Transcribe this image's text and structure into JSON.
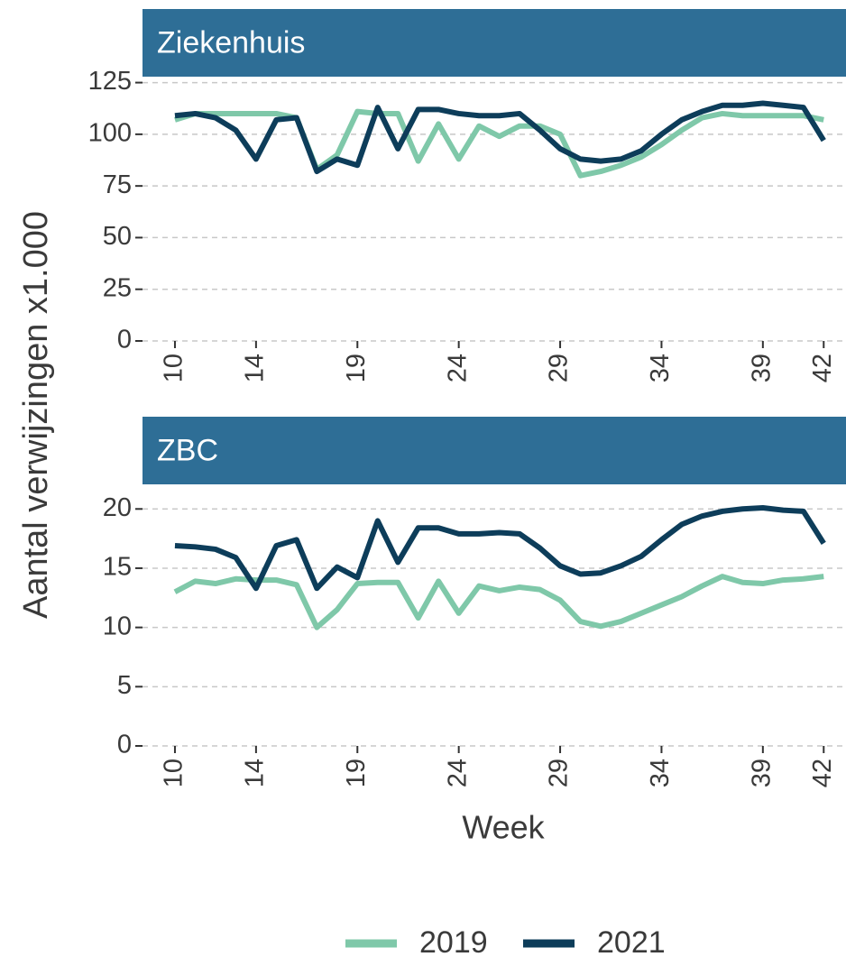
{
  "chart_data": [
    {
      "type": "line",
      "title": "Ziekenhuis",
      "ylabel": "Aantal verwijzingen x1.000",
      "x": [
        10,
        11,
        12,
        13,
        14,
        15,
        16,
        17,
        18,
        19,
        20,
        21,
        22,
        23,
        24,
        25,
        26,
        27,
        28,
        29,
        30,
        31,
        32,
        33,
        34,
        35,
        36,
        37,
        38,
        39,
        40,
        41,
        42
      ],
      "xlim": [
        8.4,
        43.1
      ],
      "xticks": [
        10,
        14,
        19,
        24,
        29,
        34,
        39,
        42
      ],
      "ylim": [
        0,
        127
      ],
      "yticks": [
        0,
        25,
        50,
        75,
        100,
        125
      ],
      "grid": true,
      "series": [
        {
          "name": "2019",
          "color": "#7fc8a9",
          "values": [
            107,
            110,
            110,
            110,
            110,
            110,
            108,
            83,
            90,
            111,
            110,
            110,
            87,
            105,
            88,
            104,
            99,
            104,
            104,
            100,
            80,
            82,
            85,
            89,
            95,
            102,
            108,
            110,
            109,
            109,
            109,
            109,
            107
          ]
        },
        {
          "name": "2021",
          "color": "#0d3d5a",
          "values": [
            109,
            110,
            108,
            102,
            88,
            107,
            108,
            82,
            88,
            85,
            113,
            93,
            112,
            112,
            110,
            109,
            109,
            110,
            102,
            93,
            88,
            87,
            88,
            92,
            100,
            107,
            111,
            114,
            114,
            115,
            114,
            113,
            97
          ]
        }
      ]
    },
    {
      "type": "line",
      "title": "ZBC",
      "xlabel": "Week",
      "x": [
        10,
        11,
        12,
        13,
        14,
        15,
        16,
        17,
        18,
        19,
        20,
        21,
        22,
        23,
        24,
        25,
        26,
        27,
        28,
        29,
        30,
        31,
        32,
        33,
        34,
        35,
        36,
        37,
        38,
        39,
        40,
        41,
        42
      ],
      "xlim": [
        8.4,
        43.1
      ],
      "xticks": [
        10,
        14,
        19,
        24,
        29,
        34,
        39,
        42
      ],
      "ylim": [
        0,
        22
      ],
      "yticks": [
        0,
        5,
        10,
        15,
        20
      ],
      "grid": true,
      "series": [
        {
          "name": "2019",
          "color": "#7fc8a9",
          "values": [
            13.0,
            13.9,
            13.7,
            14.1,
            14.0,
            14.0,
            13.6,
            10.0,
            11.5,
            13.7,
            13.8,
            13.8,
            10.8,
            13.9,
            11.2,
            13.5,
            13.1,
            13.4,
            13.2,
            12.3,
            10.5,
            10.1,
            10.5,
            11.2,
            11.9,
            12.6,
            13.5,
            14.3,
            13.8,
            13.7,
            14.0,
            14.1,
            14.3
          ]
        },
        {
          "name": "2021",
          "color": "#0d3d5a",
          "values": [
            16.9,
            16.8,
            16.6,
            15.9,
            13.3,
            16.9,
            17.4,
            13.3,
            15.1,
            14.2,
            19.0,
            15.5,
            18.4,
            18.4,
            17.9,
            17.9,
            18.0,
            17.9,
            16.7,
            15.2,
            14.5,
            14.6,
            15.2,
            16.0,
            17.4,
            18.7,
            19.4,
            19.8,
            20.0,
            20.1,
            19.9,
            19.8,
            17.1
          ]
        }
      ]
    }
  ]
}
